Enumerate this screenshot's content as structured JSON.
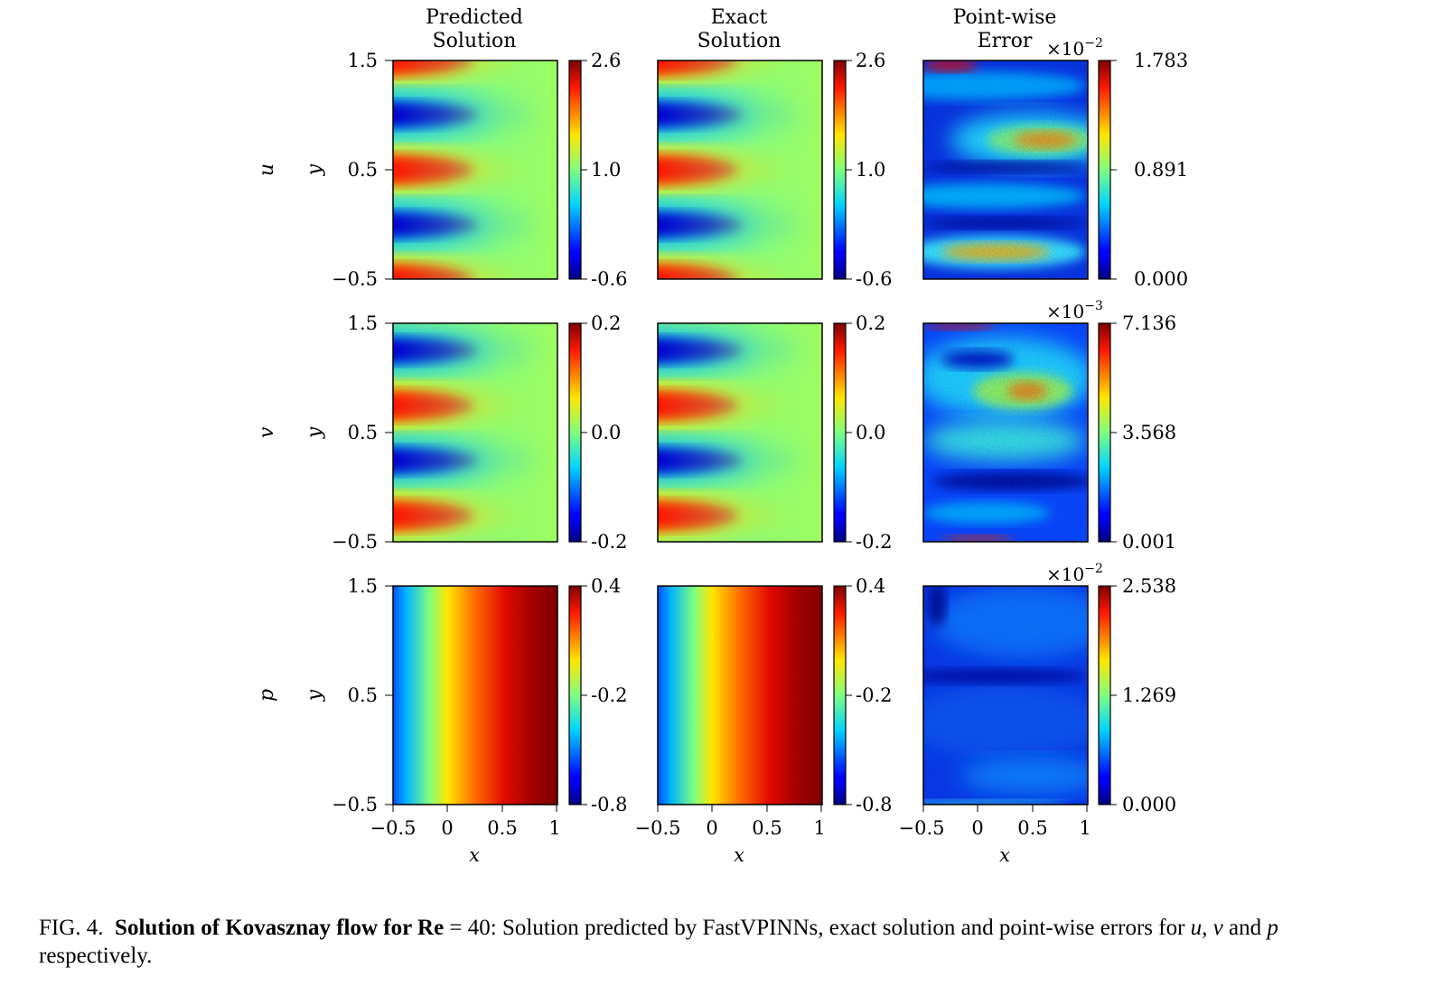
{
  "columns": [
    {
      "title_line1": "Predicted",
      "title_line2": "Solution"
    },
    {
      "title_line1": "Exact",
      "title_line2": "Solution"
    },
    {
      "title_line1": "Point-wise",
      "title_line2": "Error"
    }
  ],
  "rows": [
    {
      "var": "u",
      "ylabel": "y",
      "sol_ticks": [
        "2.6",
        "1.0",
        "-0.6"
      ],
      "err_ticks": [
        "1.783",
        "0.891",
        "0.000"
      ],
      "err_mult_base": "×10",
      "err_mult_exp": "−2"
    },
    {
      "var": "v",
      "ylabel": "y",
      "sol_ticks": [
        "0.2",
        "0.0",
        "-0.2"
      ],
      "err_ticks": [
        "7.136",
        "3.568",
        "0.001"
      ],
      "err_mult_base": "×10",
      "err_mult_exp": "−3"
    },
    {
      "var": "p",
      "ylabel": "y",
      "sol_ticks": [
        "0.4",
        "-0.2",
        "-0.8"
      ],
      "err_ticks": [
        "2.538",
        "1.269",
        "0.000"
      ],
      "err_mult_base": "×10",
      "err_mult_exp": "−2"
    }
  ],
  "y_ticks": [
    "1.5",
    "0.5",
    "−0.5"
  ],
  "x_ticks": [
    "−0.5",
    "0",
    "0.5",
    "1"
  ],
  "x_label": "x",
  "colormap": "jet",
  "colors": {
    "jet_low": "#00007f",
    "jet_mid": "#7fff7f",
    "jet_high": "#7f0000"
  },
  "caption": {
    "prefix": "FIG. 4.",
    "bold": "Solution of Kovasznay flow for Re",
    "eq": " = 40",
    "rest": ": Solution predicted by FastVPINNs, exact solution and point-wise errors for ",
    "u": "u",
    "sep1": ", ",
    "v": "v",
    "and": " and ",
    "p": "p",
    "end": "respectively."
  },
  "chart_data": [
    {
      "type": "heatmap",
      "title": "Predicted Solution",
      "variable": "u",
      "xlabel": "x",
      "ylabel": "y",
      "xlim": [
        -0.5,
        1
      ],
      "ylim": [
        -0.5,
        1.5
      ],
      "colorbar_range": [
        -0.6,
        2.6
      ],
      "colorbar_ticks": [
        2.6,
        1.0,
        -0.6
      ]
    },
    {
      "type": "heatmap",
      "title": "Exact Solution",
      "variable": "u",
      "xlabel": "x",
      "ylabel": "y",
      "xlim": [
        -0.5,
        1
      ],
      "ylim": [
        -0.5,
        1.5
      ],
      "colorbar_range": [
        -0.6,
        2.6
      ],
      "colorbar_ticks": [
        2.6,
        1.0,
        -0.6
      ]
    },
    {
      "type": "heatmap",
      "title": "Point-wise Error",
      "variable": "u",
      "xlabel": "x",
      "ylabel": "y",
      "xlim": [
        -0.5,
        1
      ],
      "ylim": [
        -0.5,
        1.5
      ],
      "colorbar_range": [
        0.0,
        1.783
      ],
      "colorbar_ticks": [
        1.783,
        0.891,
        0.0
      ],
      "colorbar_multiplier": "1e-2"
    },
    {
      "type": "heatmap",
      "title": "Predicted Solution",
      "variable": "v",
      "xlabel": "x",
      "ylabel": "y",
      "xlim": [
        -0.5,
        1
      ],
      "ylim": [
        -0.5,
        1.5
      ],
      "colorbar_range": [
        -0.2,
        0.2
      ],
      "colorbar_ticks": [
        0.2,
        0.0,
        -0.2
      ]
    },
    {
      "type": "heatmap",
      "title": "Exact Solution",
      "variable": "v",
      "xlabel": "x",
      "ylabel": "y",
      "xlim": [
        -0.5,
        1
      ],
      "ylim": [
        -0.5,
        1.5
      ],
      "colorbar_range": [
        -0.2,
        0.2
      ],
      "colorbar_ticks": [
        0.2,
        0.0,
        -0.2
      ]
    },
    {
      "type": "heatmap",
      "title": "Point-wise Error",
      "variable": "v",
      "xlabel": "x",
      "ylabel": "y",
      "xlim": [
        -0.5,
        1
      ],
      "ylim": [
        -0.5,
        1.5
      ],
      "colorbar_range": [
        0.001,
        7.136
      ],
      "colorbar_ticks": [
        7.136,
        3.568,
        0.001
      ],
      "colorbar_multiplier": "1e-3"
    },
    {
      "type": "heatmap",
      "title": "Predicted Solution",
      "variable": "p",
      "xlabel": "x",
      "ylabel": "y",
      "xlim": [
        -0.5,
        1
      ],
      "ylim": [
        -0.5,
        1.5
      ],
      "colorbar_range": [
        -0.8,
        0.4
      ],
      "colorbar_ticks": [
        0.4,
        -0.2,
        -0.8
      ]
    },
    {
      "type": "heatmap",
      "title": "Exact Solution",
      "variable": "p",
      "xlabel": "x",
      "ylabel": "y",
      "xlim": [
        -0.5,
        1
      ],
      "ylim": [
        -0.5,
        1.5
      ],
      "colorbar_range": [
        -0.8,
        0.4
      ],
      "colorbar_ticks": [
        0.4,
        -0.2,
        -0.8
      ]
    },
    {
      "type": "heatmap",
      "title": "Point-wise Error",
      "variable": "p",
      "xlabel": "x",
      "ylabel": "y",
      "xlim": [
        -0.5,
        1
      ],
      "ylim": [
        -0.5,
        1.5
      ],
      "colorbar_range": [
        0.0,
        2.538
      ],
      "colorbar_ticks": [
        2.538,
        1.269,
        0.0
      ],
      "colorbar_multiplier": "1e-2"
    }
  ]
}
